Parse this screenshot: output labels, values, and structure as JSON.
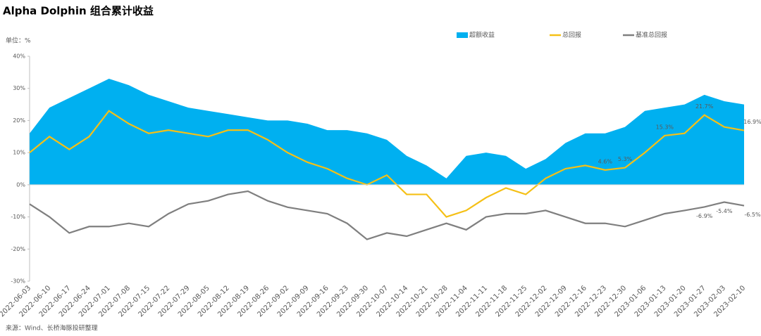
{
  "chart_data": {
    "type": "line",
    "title": "Alpha Dolphin 组合累计收益",
    "y_unit": "单位：%",
    "source": "来源：Wind、长桥海豚投研整理",
    "categories": [
      "2022-06-03",
      "2022-06-10",
      "2022-06-17",
      "2022-06-24",
      "2022-07-01",
      "2022-07-08",
      "2022-07-15",
      "2022-07-22",
      "2022-07-29",
      "2022-08-05",
      "2022-08-12",
      "2022-08-19",
      "2022-08-26",
      "2022-09-02",
      "2022-09-09",
      "2022-09-16",
      "2022-09-23",
      "2022-09-30",
      "2022-10-07",
      "2022-10-14",
      "2022-10-21",
      "2022-10-28",
      "2022-11-04",
      "2022-11-11",
      "2022-11-18",
      "2022-11-25",
      "2022-12-02",
      "2022-12-09",
      "2022-12-16",
      "2022-12-23",
      "2022-12-30",
      "2023-01-06",
      "2023-01-13",
      "2023-01-20",
      "2023-01-27",
      "2023-02-03",
      "2023-02-10"
    ],
    "series": [
      {
        "name": "超额收益",
        "kind": "area",
        "color": "#00b0f0",
        "values": [
          16,
          24,
          27,
          30,
          33,
          31,
          28,
          26,
          24,
          23,
          22,
          21,
          20,
          20,
          19,
          17,
          17,
          16,
          14,
          9,
          6,
          2,
          9,
          10,
          9,
          5,
          8,
          13,
          16,
          16,
          18,
          23,
          24,
          25,
          28,
          26,
          25
        ]
      },
      {
        "name": "总回报",
        "kind": "line",
        "color": "#f5c016",
        "values": [
          10,
          15,
          11,
          15,
          23,
          19,
          16,
          17,
          16,
          15,
          17,
          17,
          14,
          10,
          7,
          5,
          2,
          0,
          3,
          -3,
          -3,
          -10,
          -8,
          -4,
          -1,
          -3,
          2,
          5,
          6,
          4.6,
          5.3,
          10,
          15.3,
          16,
          21.7,
          18,
          16.9
        ],
        "value_labels": [
          null,
          null,
          null,
          null,
          null,
          null,
          null,
          null,
          null,
          null,
          null,
          null,
          null,
          null,
          null,
          null,
          null,
          null,
          null,
          null,
          null,
          null,
          null,
          null,
          null,
          null,
          null,
          null,
          null,
          "4.6%",
          "5.3%",
          null,
          "15.3%",
          null,
          "21.7%",
          null,
          "16.9%"
        ]
      },
      {
        "name": "基准总回报",
        "kind": "line",
        "color": "#7f7f7f",
        "values": [
          -6,
          -10,
          -15,
          -13,
          -13,
          -12,
          -13,
          -9,
          -6,
          -5,
          -3,
          -2,
          -5,
          -7,
          -8,
          -9,
          -12,
          -17,
          -15,
          -16,
          -14,
          -12,
          -14,
          -10,
          -9,
          -9,
          -8,
          -10,
          -12,
          -12,
          -13,
          -11,
          -9,
          -8,
          -6.9,
          -5.4,
          -6.5
        ],
        "value_labels": [
          null,
          null,
          null,
          null,
          null,
          null,
          null,
          null,
          null,
          null,
          null,
          null,
          null,
          null,
          null,
          null,
          null,
          null,
          null,
          null,
          null,
          null,
          null,
          null,
          null,
          null,
          null,
          null,
          null,
          null,
          null,
          null,
          null,
          null,
          "-6.9%",
          "-5.4%",
          "-6.5%"
        ]
      }
    ],
    "ylim": [
      -30,
      40
    ],
    "yticks": [
      {
        "value": 40,
        "label": "40%"
      },
      {
        "value": 30,
        "label": "30%"
      },
      {
        "value": 20,
        "label": "20%"
      },
      {
        "value": 10,
        "label": "10%"
      },
      {
        "value": 0,
        "label": "0%"
      },
      {
        "value": -10,
        "label": "-10%"
      },
      {
        "value": -20,
        "label": "-20%"
      },
      {
        "value": -30,
        "label": "-30%"
      }
    ]
  }
}
